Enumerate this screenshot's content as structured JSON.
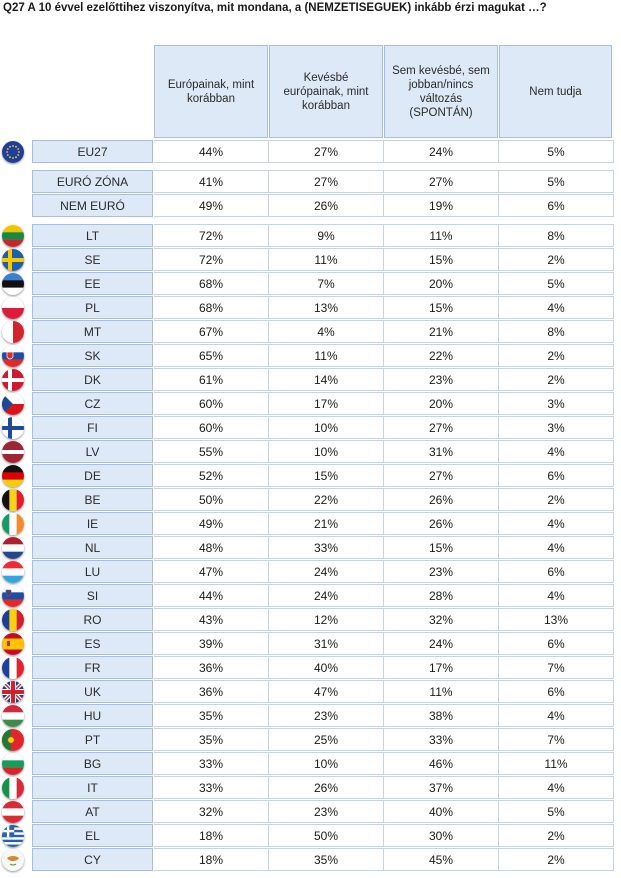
{
  "title": "Q27 A 10 évvel ezelőttihez viszonyítva, mit mondana, a (NEMZETISÉGŰEK) inkább érzi magukat …?",
  "columns": [
    "Európainak, mint korábban",
    "Kevésbé európainak, mint korábban",
    "Sem kevésbé, sem jobban/nincs változás (SPONTÁN)",
    "Nem tudja"
  ],
  "groups": [
    {
      "rows": [
        {
          "label": "EU27",
          "flag": "eu-flag",
          "values": [
            "44%",
            "27%",
            "24%",
            "5%"
          ]
        }
      ]
    },
    {
      "rows": [
        {
          "label": "EURÓ ZÓNA",
          "flag": "",
          "values": [
            "41%",
            "27%",
            "27%",
            "5%"
          ]
        },
        {
          "label": "NEM EURÓ",
          "flag": "",
          "values": [
            "49%",
            "26%",
            "19%",
            "6%"
          ]
        }
      ]
    },
    {
      "rows": [
        {
          "label": "LT",
          "flag": "lt-flag",
          "values": [
            "72%",
            "9%",
            "11%",
            "8%"
          ]
        },
        {
          "label": "SE",
          "flag": "se-flag",
          "values": [
            "72%",
            "11%",
            "15%",
            "2%"
          ]
        },
        {
          "label": "EE",
          "flag": "ee-flag",
          "values": [
            "68%",
            "7%",
            "20%",
            "5%"
          ]
        },
        {
          "label": "PL",
          "flag": "pl-flag",
          "values": [
            "68%",
            "13%",
            "15%",
            "4%"
          ]
        },
        {
          "label": "MT",
          "flag": "mt-flag",
          "values": [
            "67%",
            "4%",
            "21%",
            "8%"
          ]
        },
        {
          "label": "SK",
          "flag": "sk-flag",
          "values": [
            "65%",
            "11%",
            "22%",
            "2%"
          ]
        },
        {
          "label": "DK",
          "flag": "dk-flag",
          "values": [
            "61%",
            "14%",
            "23%",
            "2%"
          ]
        },
        {
          "label": "CZ",
          "flag": "cz-flag",
          "values": [
            "60%",
            "17%",
            "20%",
            "3%"
          ]
        },
        {
          "label": "FI",
          "flag": "fi-flag",
          "values": [
            "60%",
            "10%",
            "27%",
            "3%"
          ]
        },
        {
          "label": "LV",
          "flag": "lv-flag",
          "values": [
            "55%",
            "10%",
            "31%",
            "4%"
          ]
        },
        {
          "label": "DE",
          "flag": "de-flag",
          "values": [
            "52%",
            "15%",
            "27%",
            "6%"
          ]
        },
        {
          "label": "BE",
          "flag": "be-flag",
          "values": [
            "50%",
            "22%",
            "26%",
            "2%"
          ]
        },
        {
          "label": "IE",
          "flag": "ie-flag",
          "values": [
            "49%",
            "21%",
            "26%",
            "4%"
          ]
        },
        {
          "label": "NL",
          "flag": "nl-flag",
          "values": [
            "48%",
            "33%",
            "15%",
            "4%"
          ]
        },
        {
          "label": "LU",
          "flag": "lu-flag",
          "values": [
            "47%",
            "24%",
            "23%",
            "6%"
          ]
        },
        {
          "label": "SI",
          "flag": "si-flag",
          "values": [
            "44%",
            "24%",
            "28%",
            "4%"
          ]
        },
        {
          "label": "RO",
          "flag": "ro-flag",
          "values": [
            "43%",
            "12%",
            "32%",
            "13%"
          ]
        },
        {
          "label": "ES",
          "flag": "es-flag",
          "values": [
            "39%",
            "31%",
            "24%",
            "6%"
          ]
        },
        {
          "label": "FR",
          "flag": "fr-flag",
          "values": [
            "36%",
            "40%",
            "17%",
            "7%"
          ]
        },
        {
          "label": "UK",
          "flag": "uk-flag",
          "values": [
            "36%",
            "47%",
            "11%",
            "6%"
          ]
        },
        {
          "label": "HU",
          "flag": "hu-flag",
          "values": [
            "35%",
            "23%",
            "38%",
            "4%"
          ]
        },
        {
          "label": "PT",
          "flag": "pt-flag",
          "values": [
            "35%",
            "25%",
            "33%",
            "7%"
          ]
        },
        {
          "label": "BG",
          "flag": "bg-flag",
          "values": [
            "33%",
            "10%",
            "46%",
            "11%"
          ]
        },
        {
          "label": "IT",
          "flag": "it-flag",
          "values": [
            "33%",
            "26%",
            "37%",
            "4%"
          ]
        },
        {
          "label": "AT",
          "flag": "at-flag",
          "values": [
            "32%",
            "23%",
            "40%",
            "5%"
          ]
        },
        {
          "label": "EL",
          "flag": "el-flag",
          "values": [
            "18%",
            "50%",
            "30%",
            "2%"
          ]
        },
        {
          "label": "CY",
          "flag": "cy-flag",
          "values": [
            "18%",
            "35%",
            "45%",
            "2%"
          ]
        }
      ]
    }
  ]
}
